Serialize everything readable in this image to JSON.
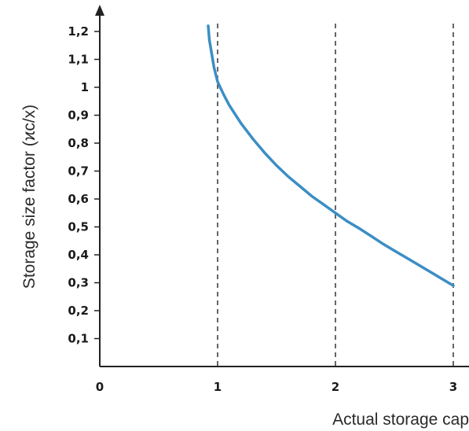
{
  "chart_data": {
    "type": "line",
    "title": "",
    "xlabel": "Actual storage cap",
    "ylabel": "Storage size factor (ϰc/x)",
    "x_ticks": [
      "0",
      "1",
      "2",
      "3"
    ],
    "y_ticks": [
      "0,1",
      "0,2",
      "0,3",
      "0,4",
      "0,5",
      "0,6",
      "0,7",
      "0,8",
      "0,9",
      "1",
      "1,1",
      "1,2"
    ],
    "xlim": [
      0,
      3
    ],
    "ylim": [
      0,
      1.2
    ],
    "reference_lines_x": [
      1,
      2,
      3
    ],
    "series": [
      {
        "color": "#3b8ec4",
        "x": [
          0.92,
          0.93,
          0.95,
          0.97,
          1.0,
          1.05,
          1.1,
          1.2,
          1.3,
          1.4,
          1.5,
          1.6,
          1.7,
          1.8,
          1.9,
          2.0,
          2.1,
          2.2,
          2.3,
          2.4,
          2.5,
          2.6,
          2.7,
          2.8,
          2.9,
          3.0
        ],
        "y": [
          1.22,
          1.17,
          1.12,
          1.07,
          1.02,
          0.975,
          0.935,
          0.87,
          0.815,
          0.765,
          0.72,
          0.68,
          0.645,
          0.61,
          0.58,
          0.55,
          0.52,
          0.495,
          0.468,
          0.44,
          0.415,
          0.39,
          0.365,
          0.34,
          0.315,
          0.29
        ]
      }
    ]
  }
}
